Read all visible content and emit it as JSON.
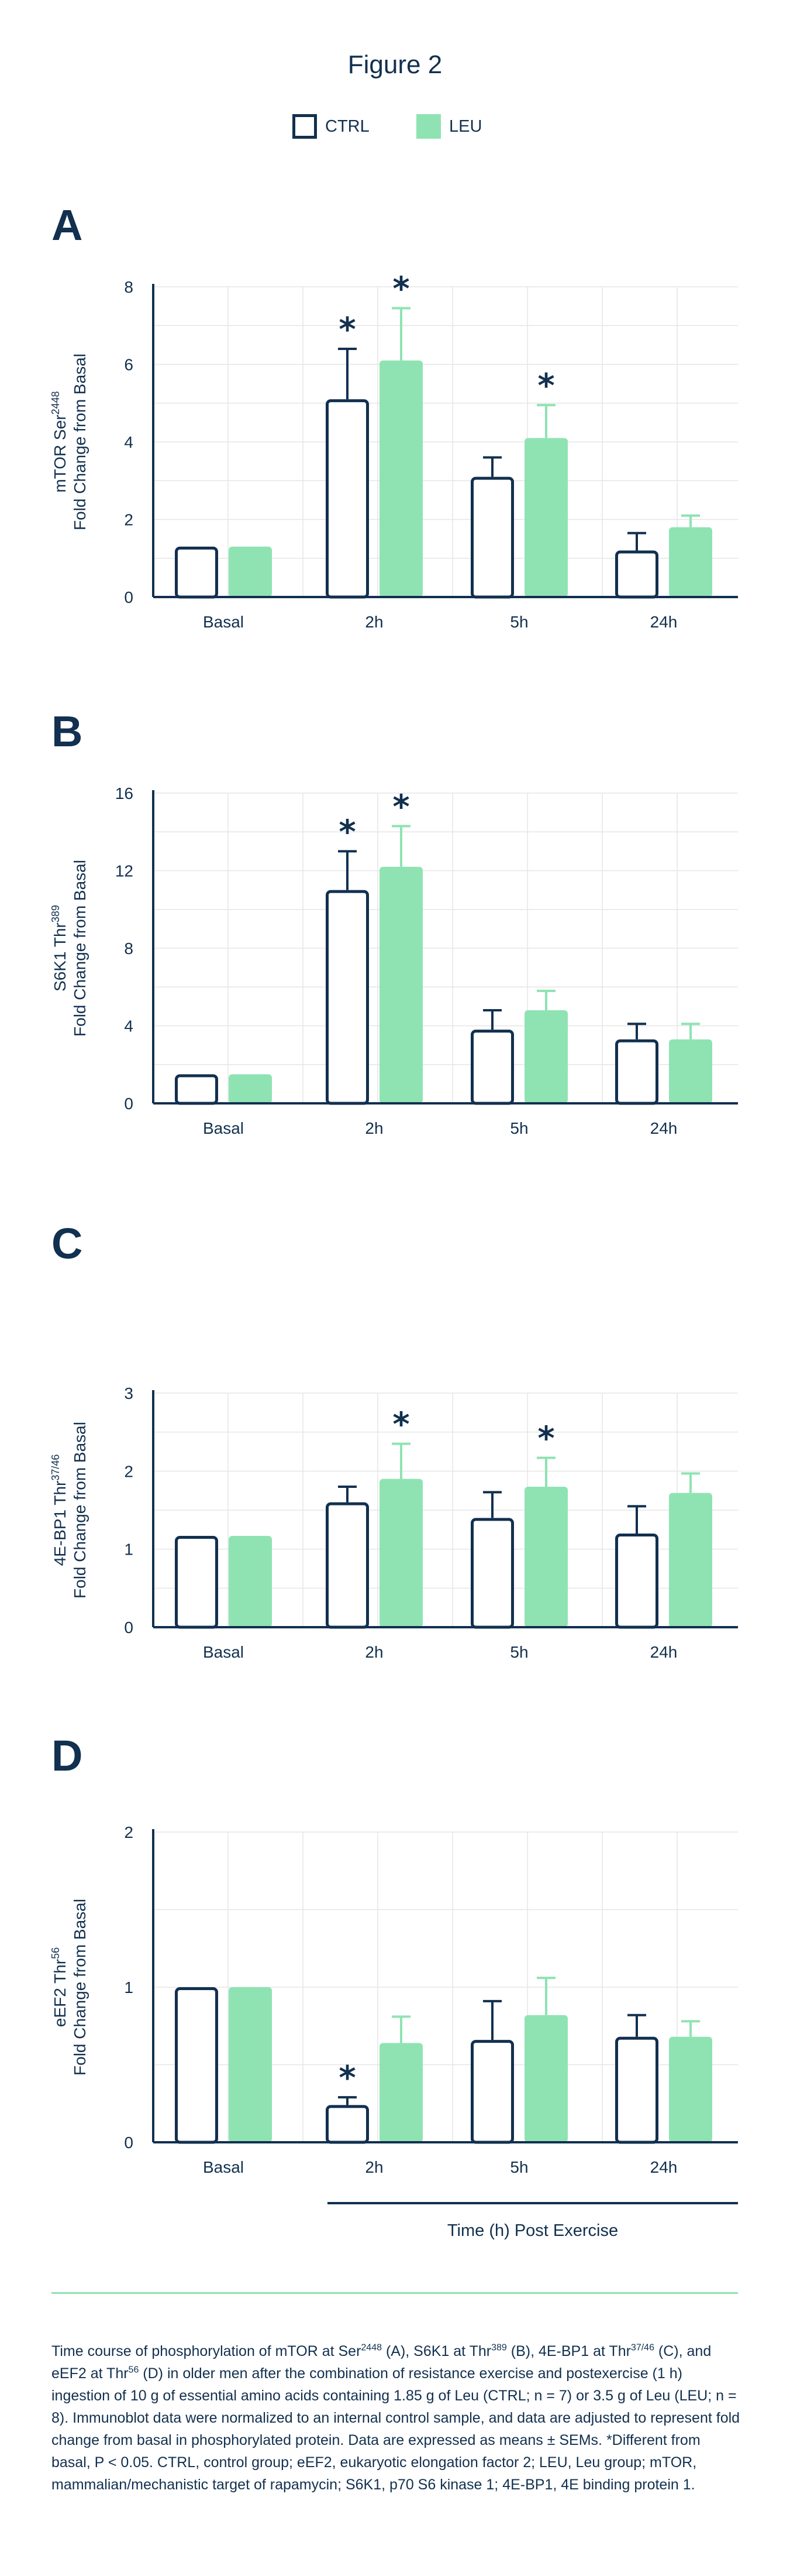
{
  "figure_title": "Figure 2",
  "legend": {
    "ctrl_label": "CTRL",
    "leu_label": "LEU"
  },
  "colors": {
    "ctrl_stroke": "#12304f",
    "ctrl_fill": "#ffffff",
    "leu_fill": "#8fe3b3",
    "leu_error": "#8fe3b3",
    "axis": "#12304f",
    "grid": "#e6e6e6",
    "divider": "#8fe3b3"
  },
  "x_axis_title": "Time (h) Post Exercise",
  "chart_data": [
    {
      "type": "bar",
      "panel": "A",
      "ylabel_line1": "mTOR Ser",
      "ylabel_sup": "2448",
      "ylabel_line2": "Fold Change from Basal",
      "categories": [
        "Basal",
        "2h",
        "5h",
        "24h"
      ],
      "ylim": [
        0,
        8
      ],
      "yticks": [
        0,
        2,
        4,
        6,
        8
      ],
      "grid": true,
      "series": [
        {
          "name": "CTRL",
          "values": [
            1.3,
            5.1,
            3.1,
            1.2
          ],
          "errors": [
            0,
            1.3,
            0.5,
            0.45
          ],
          "significant": [
            false,
            true,
            false,
            false
          ]
        },
        {
          "name": "LEU",
          "values": [
            1.3,
            6.1,
            4.1,
            1.8
          ],
          "errors": [
            0,
            1.35,
            0.85,
            0.3
          ],
          "significant": [
            false,
            true,
            true,
            false
          ]
        }
      ]
    },
    {
      "type": "bar",
      "panel": "B",
      "ylabel_line1": "S6K1 Thr",
      "ylabel_sup": "389",
      "ylabel_line2": "Fold Change from Basal",
      "categories": [
        "Basal",
        "2h",
        "5h",
        "24h"
      ],
      "ylim": [
        0,
        16
      ],
      "yticks": [
        0,
        4,
        8,
        12,
        16
      ],
      "grid": true,
      "series": [
        {
          "name": "CTRL",
          "values": [
            1.5,
            11.0,
            3.8,
            3.3
          ],
          "errors": [
            0,
            2.0,
            1.0,
            0.8
          ],
          "significant": [
            false,
            true,
            false,
            false
          ]
        },
        {
          "name": "LEU",
          "values": [
            1.5,
            12.2,
            4.8,
            3.3
          ],
          "errors": [
            0,
            2.1,
            1.0,
            0.8
          ],
          "significant": [
            false,
            true,
            false,
            false
          ]
        }
      ]
    },
    {
      "type": "bar",
      "panel": "C",
      "ylabel_line1": "4E-BP1 Thr",
      "ylabel_sup": "37/46",
      "ylabel_line2": "Fold Change from Basal",
      "categories": [
        "Basal",
        "2h",
        "5h",
        "24h"
      ],
      "ylim": [
        0,
        3
      ],
      "yticks": [
        0,
        1,
        2,
        3
      ],
      "grid": true,
      "series": [
        {
          "name": "CTRL",
          "values": [
            1.17,
            1.6,
            1.4,
            1.2
          ],
          "errors": [
            0,
            0.2,
            0.33,
            0.35
          ],
          "significant": [
            false,
            false,
            false,
            false
          ]
        },
        {
          "name": "LEU",
          "values": [
            1.17,
            1.9,
            1.8,
            1.72
          ],
          "errors": [
            0,
            0.45,
            0.37,
            0.25
          ],
          "significant": [
            false,
            true,
            true,
            false
          ]
        }
      ]
    },
    {
      "type": "bar",
      "panel": "D",
      "ylabel_line1": "eEF2 Thr",
      "ylabel_sup": "56",
      "ylabel_line2": "Fold Change from Basal",
      "categories": [
        "Basal",
        "2h",
        "5h",
        "24h"
      ],
      "ylim": [
        0,
        2
      ],
      "yticks": [
        0,
        1,
        2
      ],
      "grid": true,
      "series": [
        {
          "name": "CTRL",
          "values": [
            1.0,
            0.24,
            0.66,
            0.68
          ],
          "errors": [
            0,
            0.05,
            0.25,
            0.14
          ],
          "significant": [
            false,
            true,
            false,
            false
          ]
        },
        {
          "name": "LEU",
          "values": [
            1.0,
            0.64,
            0.82,
            0.68
          ],
          "errors": [
            0,
            0.17,
            0.24,
            0.1
          ],
          "significant": [
            false,
            false,
            false,
            false
          ]
        }
      ]
    }
  ],
  "caption": {
    "p1": "Time course of phosphorylation of mTOR at Ser",
    "s1": "2448",
    "p2": " (A), S6K1 at Thr",
    "s2": "389",
    "p3": " (B), 4E-BP1 at Thr",
    "s3": "37/46",
    "p4": " (C), and eEF2 at Thr",
    "s4": "56",
    "p5": " (D) in older men after the combination of resistance exercise and postexercise (1 h) ingestion of 10 g of essential amino acids containing 1.85 g of Leu (CTRL; n = 7) or 3.5 g of Leu (LEU; n = 8). Immunoblot data were normalized to an internal control sample, and data are adjusted to represent fold change from basal in phosphorylated protein. Data are expressed as means ± SEMs. *Different from basal, P < 0.05. CTRL, control group; eEF2, eukaryotic elongation factor 2; LEU, Leu group; mTOR, mammalian/mechanistic target of rapamycin; S6K1, p70 S6 kinase 1; 4E-BP1, 4E binding protein 1."
  }
}
